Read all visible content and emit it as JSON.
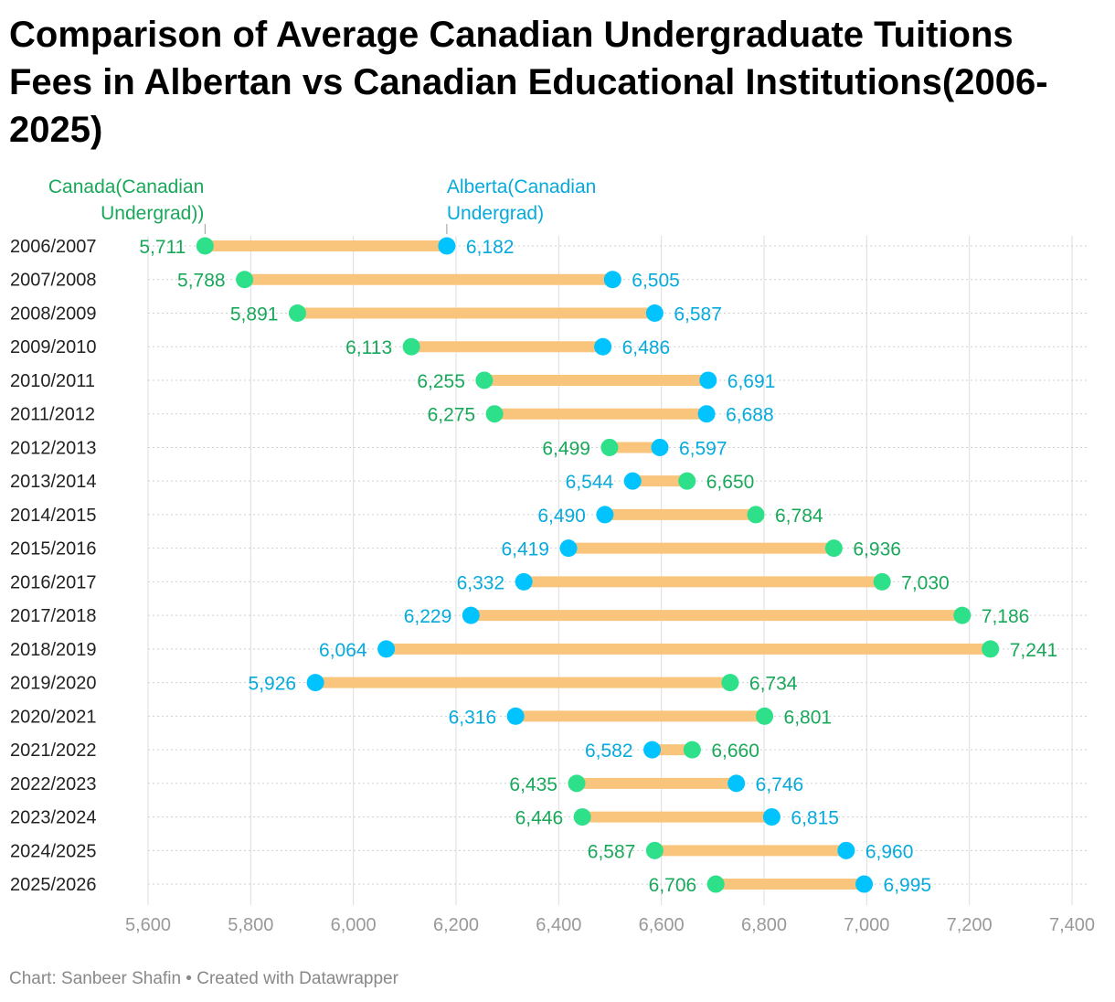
{
  "title": "Comparison of Average Canadian Undergraduate Tuitions Fees in Albertan vs Canadian Educational Institutions(2006-2025)",
  "footer": {
    "source": "Chart: Sanbeer Shafin",
    "separator": "•",
    "credit": "Created with Datawrapper"
  },
  "colors": {
    "canada": "#2ee08a",
    "canada_text": "#19a85a",
    "alberta": "#00c3ff",
    "alberta_text": "#06aadd",
    "bar": "#f9c57c",
    "axis_text": "#999999",
    "grid": "#dddddd"
  },
  "chart_data": {
    "type": "range-dot",
    "categories": [
      "2006/2007",
      "2007/2008",
      "2008/2009",
      "2009/2010",
      "2010/2011",
      "2011/2012",
      "2012/2013",
      "2013/2014",
      "2014/2015",
      "2015/2016",
      "2016/2017",
      "2017/2018",
      "2018/2019",
      "2019/2020",
      "2020/2021",
      "2021/2022",
      "2022/2023",
      "2023/2024",
      "2024/2025",
      "2025/2026"
    ],
    "series": [
      {
        "name": "Canada(Canadian Undergrad))",
        "label_lines": [
          "Canada(Canadian",
          "Undergrad))"
        ],
        "values": [
          5711,
          5788,
          5891,
          6113,
          6255,
          6275,
          6499,
          6650,
          6784,
          6936,
          7030,
          7186,
          7241,
          6734,
          6801,
          6660,
          6435,
          6446,
          6587,
          6706
        ]
      },
      {
        "name": "Alberta(Canadian Undergrad)",
        "label_lines": [
          "Alberta(Canadian",
          "Undergrad)"
        ],
        "values": [
          6182,
          6505,
          6587,
          6486,
          6691,
          6688,
          6597,
          6544,
          6490,
          6419,
          6332,
          6229,
          6064,
          5926,
          6316,
          6582,
          6746,
          6815,
          6960,
          6995
        ]
      }
    ],
    "value_labels": {
      "canada": [
        "5,711",
        "5,788",
        "5,891",
        "6,113",
        "6,255",
        "6,275",
        "6,499",
        "6,650",
        "6,784",
        "6,936",
        "7,030",
        "7,186",
        "7,241",
        "6,734",
        "6,801",
        "6,660",
        "6,435",
        "6,446",
        "6,587",
        "6,706"
      ],
      "alberta": [
        "6,182",
        "6,505",
        "6,587",
        "6,486",
        "6,691",
        "6,688",
        "6,597",
        "6,544",
        "6,490",
        "6,419",
        "6,332",
        "6,229",
        "6,064",
        "5,926",
        "6,316",
        "6,582",
        "6,746",
        "6,815",
        "6,960",
        "6,995"
      ]
    },
    "xlim": [
      5600,
      7400
    ],
    "xticks": [
      5600,
      5800,
      6000,
      6200,
      6400,
      6600,
      6800,
      7000,
      7200,
      7400
    ],
    "xtick_labels": [
      "5,600",
      "5,800",
      "6,000",
      "6,200",
      "6,400",
      "6,600",
      "6,800",
      "7,000",
      "7,200",
      "7,400"
    ],
    "grid": true
  }
}
